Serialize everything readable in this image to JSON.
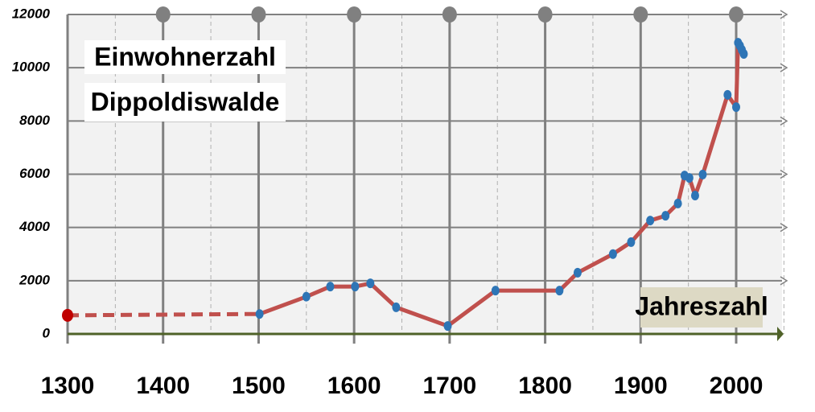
{
  "chart_data": {
    "type": "line",
    "title": [
      "Einwohnerzahl",
      "Dippoldiswalde"
    ],
    "x_label": "Jahreszahl",
    "xlim": [
      1300,
      2048
    ],
    "xticks": [
      1300,
      1400,
      1500,
      1600,
      1700,
      1800,
      1900,
      2000
    ],
    "x_minor_grid": [
      1350,
      1450,
      1550,
      1650,
      1750,
      1850,
      1950,
      2050
    ],
    "ylim": [
      0,
      12000
    ],
    "yticks": [
      0,
      2000,
      4000,
      6000,
      8000,
      10000,
      12000
    ],
    "grid": true,
    "series": [
      {
        "color": "#c0504d",
        "style": "dashed",
        "marker_color": "#c00000",
        "markers": "first",
        "x": [
          1300,
          1500
        ],
        "values": [
          700,
          750
        ]
      },
      {
        "color": "#c0504d",
        "style": "solid",
        "marker_color": "#2e75b6",
        "markers": "all",
        "x": [
          1501,
          1550,
          1575,
          1601,
          1617,
          1644,
          1698,
          1748,
          1815,
          1834,
          1871,
          1890,
          1910,
          1926,
          1939,
          1946,
          1951,
          1957,
          1965,
          1991,
          2000,
          2002,
          2004,
          2006,
          2008
        ],
        "values": [
          750,
          1400,
          1780,
          1780,
          1900,
          1000,
          300,
          1630,
          1630,
          2300,
          3000,
          3450,
          4260,
          4440,
          4900,
          5950,
          5860,
          5200,
          5990,
          8980,
          8520,
          10940,
          10820,
          10670,
          10520
        ]
      }
    ]
  }
}
